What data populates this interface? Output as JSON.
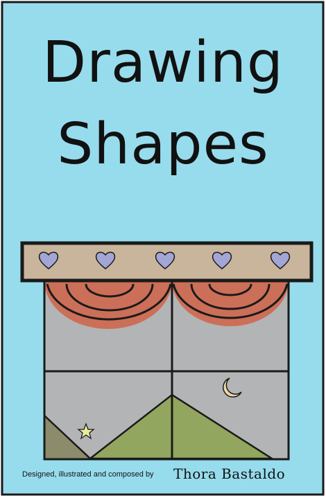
{
  "cover": {
    "title_line_1": "Drawing",
    "title_line_2": "Shapes",
    "credit_prefix": "Designed, illustrated and composed by",
    "credit_name": "Thora Bastaldo"
  },
  "colors": {
    "background": "#97dced",
    "pelmet": "#c9b59c",
    "heart": "#a3a6d4",
    "curtain": "#cc6f58",
    "window_glass": "#b3b4b6",
    "hill_light": "#93a65f",
    "hill_dark": "#8c8b6c",
    "moon": "#efd6a6",
    "star": "#ecec9a",
    "outline": "#1a1a1a"
  },
  "icons": {
    "hearts": [
      "heart-icon",
      "heart-icon",
      "heart-icon",
      "heart-icon",
      "heart-icon"
    ],
    "moon": "crescent-moon-icon",
    "star": "star-icon"
  }
}
